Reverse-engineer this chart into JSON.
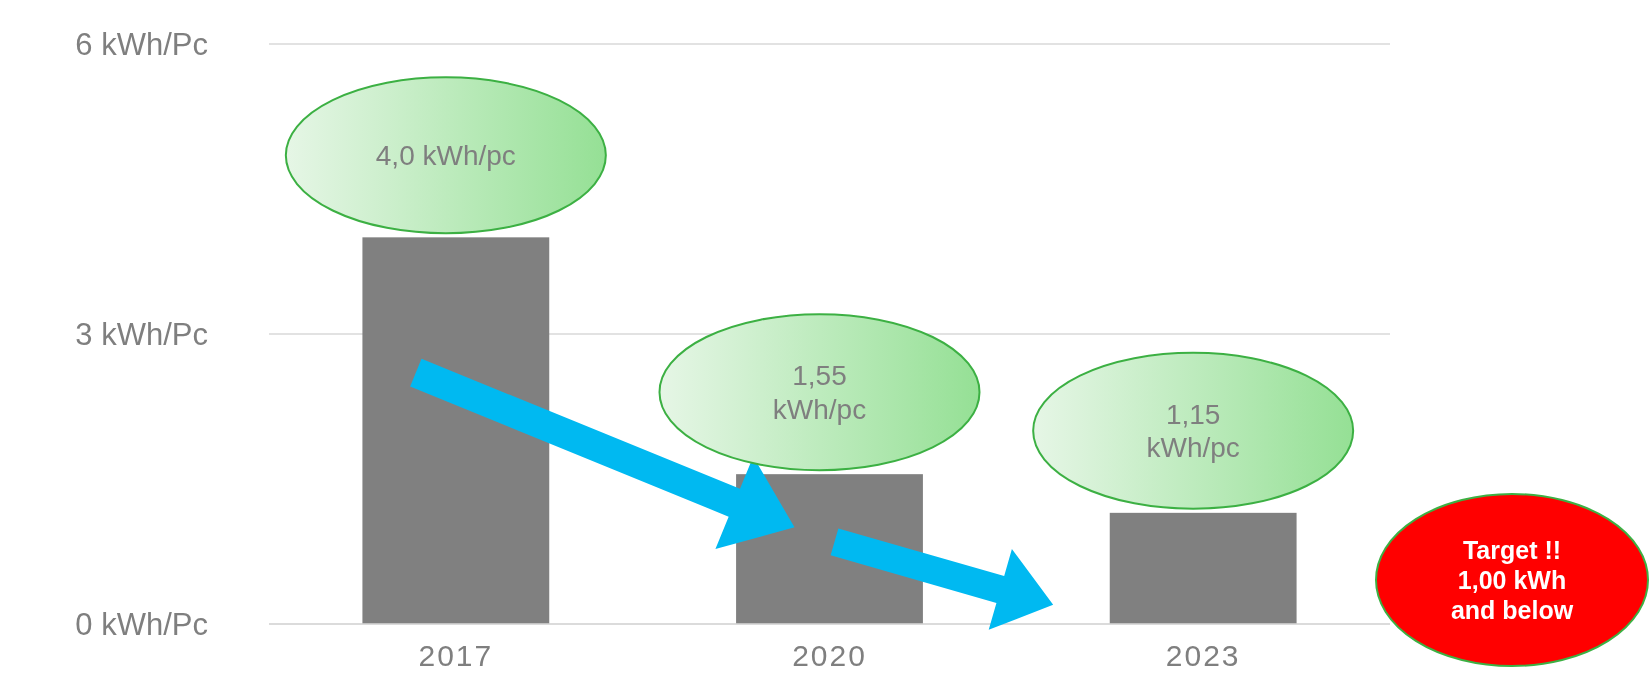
{
  "chart_data": {
    "type": "bar",
    "categories": [
      "2017",
      "2020",
      "2023"
    ],
    "values": [
      4.0,
      1.55,
      1.15
    ],
    "value_labels": [
      "4,0 kWh/pc",
      "1,55 kWh/pc",
      "1,15 kWh/pc"
    ],
    "color": "#808080",
    "ylim": [
      0,
      6
    ],
    "yticks": [
      {
        "value": 0,
        "label": "0 kWh/Pc"
      },
      {
        "value": 3,
        "label": "3 kWh/Pc"
      },
      {
        "value": 6,
        "label": "6 kWh/Pc"
      }
    ],
    "grid": "y",
    "annotations": [
      "Target !! 1,00 kWh and below"
    ]
  }
}
